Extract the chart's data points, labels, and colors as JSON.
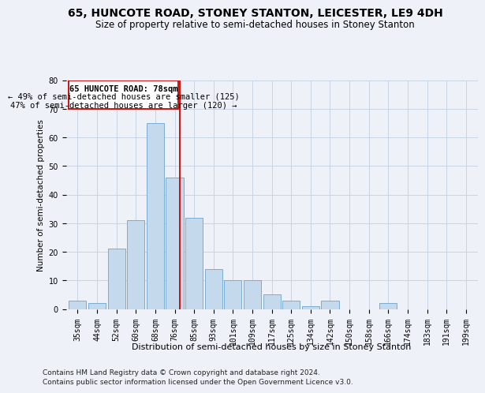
{
  "title": "65, HUNCOTE ROAD, STONEY STANTON, LEICESTER, LE9 4DH",
  "subtitle": "Size of property relative to semi-detached houses in Stoney Stanton",
  "xlabel": "Distribution of semi-detached houses by size in Stoney Stanton",
  "ylabel": "Number of semi-detached properties",
  "footnote1": "Contains HM Land Registry data © Crown copyright and database right 2024.",
  "footnote2": "Contains public sector information licensed under the Open Government Licence v3.0.",
  "categories": [
    "35sqm",
    "44sqm",
    "52sqm",
    "60sqm",
    "68sqm",
    "76sqm",
    "85sqm",
    "93sqm",
    "101sqm",
    "109sqm",
    "117sqm",
    "125sqm",
    "134sqm",
    "142sqm",
    "150sqm",
    "158sqm",
    "166sqm",
    "174sqm",
    "183sqm",
    "191sqm",
    "199sqm"
  ],
  "values": [
    3,
    2,
    21,
    31,
    65,
    46,
    32,
    14,
    10,
    10,
    5,
    3,
    1,
    3,
    0,
    0,
    2,
    0,
    0,
    0,
    0
  ],
  "bar_color": "#c5d9ed",
  "bar_edge_color": "#7aadd4",
  "grid_color": "#c8d4e4",
  "annotation_border_color": "#cc0000",
  "annotation_text_line1": "65 HUNCOTE ROAD: 78sqm",
  "annotation_text_line2": "← 49% of semi-detached houses are smaller (125)",
  "annotation_text_line3": "47% of semi-detached houses are larger (120) →",
  "red_line_x": 5.28,
  "ylim": [
    0,
    80
  ],
  "yticks": [
    0,
    10,
    20,
    30,
    40,
    50,
    60,
    70,
    80
  ],
  "title_fontsize": 10,
  "subtitle_fontsize": 8.5,
  "xlabel_fontsize": 8,
  "ylabel_fontsize": 7.5,
  "tick_fontsize": 7,
  "annotation_fontsize": 7.5,
  "footnote_fontsize": 6.5,
  "background_color": "#eef2f8"
}
